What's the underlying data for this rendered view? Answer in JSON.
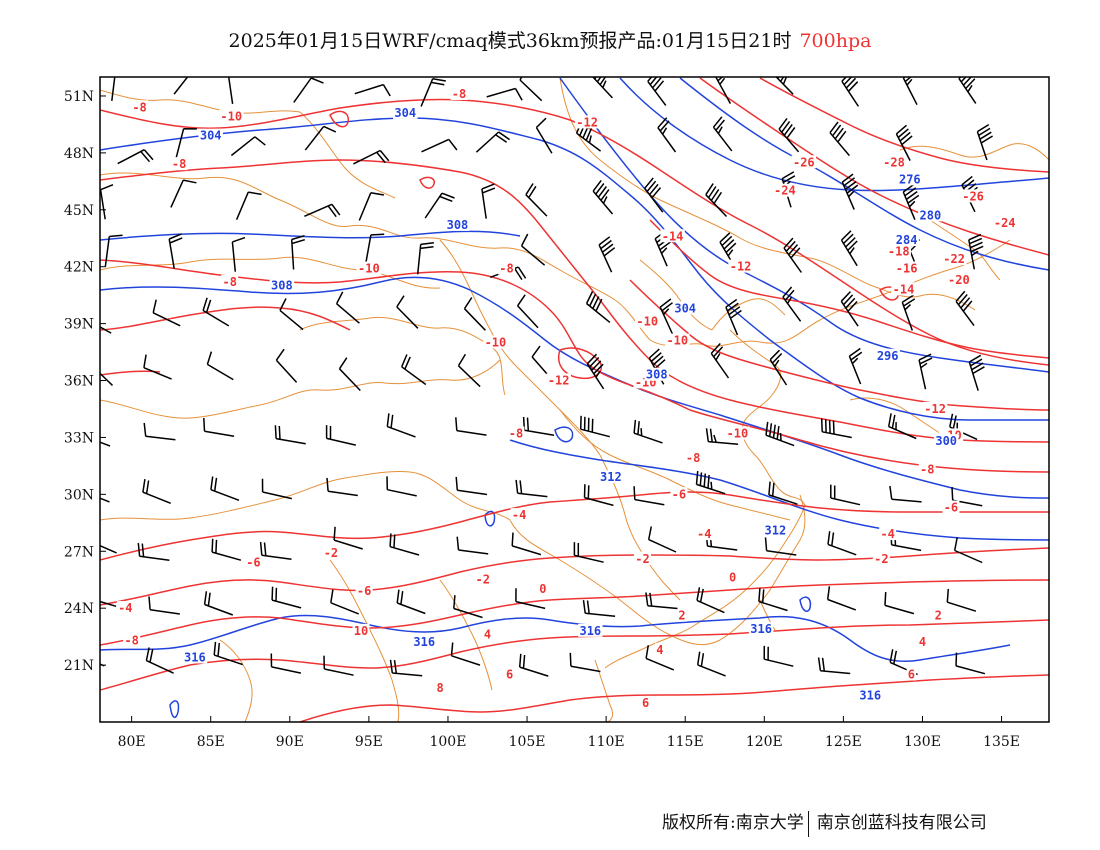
{
  "title": {
    "main": "2025年01月15日WRF/cmaq模式36km预报产品:01月15日21时",
    "level": "700hpa"
  },
  "colors": {
    "temperature": "#ee3333",
    "height": "#2244dd",
    "borders": "#e6913a",
    "wind": "#000000",
    "frame": "#000000"
  },
  "map": {
    "lon_range": [
      78,
      138
    ],
    "lat_range": [
      18,
      52
    ],
    "lon_ticks": [
      "80E",
      "85E",
      "90E",
      "95E",
      "100E",
      "105E",
      "110E",
      "115E",
      "120E",
      "125E",
      "130E",
      "135E"
    ],
    "lat_ticks": [
      "21N",
      "24N",
      "27N",
      "30N",
      "33N",
      "36N",
      "39N",
      "42N",
      "45N",
      "48N",
      "51N"
    ],
    "temperature_labels": [
      {
        "text": "-8",
        "lon": 80.5,
        "lat": 50.3
      },
      {
        "text": "-10",
        "lon": 86.3,
        "lat": 49.8
      },
      {
        "text": "-8",
        "lon": 83.0,
        "lat": 47.3
      },
      {
        "text": "-8",
        "lon": 100.7,
        "lat": 51.0
      },
      {
        "text": "-12",
        "lon": 108.8,
        "lat": 49.5
      },
      {
        "text": "-26",
        "lon": 122.5,
        "lat": 47.4
      },
      {
        "text": "-28",
        "lon": 128.2,
        "lat": 47.4
      },
      {
        "text": "-24",
        "lon": 121.3,
        "lat": 45.9
      },
      {
        "text": "-26",
        "lon": 133.2,
        "lat": 45.6
      },
      {
        "text": "-24",
        "lon": 135.2,
        "lat": 44.2
      },
      {
        "text": "-14",
        "lon": 114.2,
        "lat": 43.5
      },
      {
        "text": "-18",
        "lon": 128.5,
        "lat": 42.7
      },
      {
        "text": "-22",
        "lon": 132.0,
        "lat": 42.3
      },
      {
        "text": "-16",
        "lon": 129.0,
        "lat": 41.8
      },
      {
        "text": "-20",
        "lon": 132.3,
        "lat": 41.2
      },
      {
        "text": "-14",
        "lon": 128.8,
        "lat": 40.7
      },
      {
        "text": "-12",
        "lon": 118.5,
        "lat": 41.9
      },
      {
        "text": "-10",
        "lon": 95.0,
        "lat": 41.8
      },
      {
        "text": "-8",
        "lon": 86.2,
        "lat": 41.1
      },
      {
        "text": "-8",
        "lon": 103.7,
        "lat": 41.8
      },
      {
        "text": "-10",
        "lon": 112.6,
        "lat": 39.0
      },
      {
        "text": "-10",
        "lon": 114.5,
        "lat": 38.0
      },
      {
        "text": "-10",
        "lon": 103.0,
        "lat": 37.9
      },
      {
        "text": "-12",
        "lon": 107.0,
        "lat": 35.9
      },
      {
        "text": "-10",
        "lon": 112.5,
        "lat": 35.8
      },
      {
        "text": "-8",
        "lon": 104.3,
        "lat": 33.1
      },
      {
        "text": "-10",
        "lon": 118.3,
        "lat": 33.1
      },
      {
        "text": "-12",
        "lon": 130.8,
        "lat": 34.4
      },
      {
        "text": "-10",
        "lon": 131.8,
        "lat": 33.0
      },
      {
        "text": "-8",
        "lon": 115.5,
        "lat": 31.8
      },
      {
        "text": "-8",
        "lon": 130.3,
        "lat": 31.2
      },
      {
        "text": "-6",
        "lon": 114.6,
        "lat": 29.9
      },
      {
        "text": "-6",
        "lon": 131.8,
        "lat": 29.2
      },
      {
        "text": "-4",
        "lon": 104.5,
        "lat": 28.8
      },
      {
        "text": "-4",
        "lon": 116.2,
        "lat": 27.8
      },
      {
        "text": "-4",
        "lon": 127.8,
        "lat": 27.8
      },
      {
        "text": "-2",
        "lon": 92.6,
        "lat": 26.8
      },
      {
        "text": "-2",
        "lon": 112.3,
        "lat": 26.5
      },
      {
        "text": "-2",
        "lon": 127.4,
        "lat": 26.5
      },
      {
        "text": "0",
        "lon": 106.0,
        "lat": 24.9
      },
      {
        "text": "0",
        "lon": 118.0,
        "lat": 25.5
      },
      {
        "text": "-2",
        "lon": 102.2,
        "lat": 25.4
      },
      {
        "text": "-4",
        "lon": 79.6,
        "lat": 23.9
      },
      {
        "text": "-6",
        "lon": 87.7,
        "lat": 26.3
      },
      {
        "text": "-6",
        "lon": 94.7,
        "lat": 24.8
      },
      {
        "text": "2",
        "lon": 114.8,
        "lat": 23.5
      },
      {
        "text": "2",
        "lon": 131.0,
        "lat": 23.5
      },
      {
        "text": "-8",
        "lon": 80.0,
        "lat": 22.2
      },
      {
        "text": "10",
        "lon": 94.5,
        "lat": 22.7
      },
      {
        "text": "4",
        "lon": 102.5,
        "lat": 22.5
      },
      {
        "text": "4",
        "lon": 113.4,
        "lat": 21.7
      },
      {
        "text": "4",
        "lon": 130.0,
        "lat": 22.1
      },
      {
        "text": "8",
        "lon": 99.5,
        "lat": 19.7
      },
      {
        "text": "6",
        "lon": 103.9,
        "lat": 20.4
      },
      {
        "text": "6",
        "lon": 112.5,
        "lat": 18.9
      },
      {
        "text": "6",
        "lon": 129.3,
        "lat": 20.4
      }
    ],
    "height_labels": [
      {
        "text": "304",
        "lon": 97.3,
        "lat": 50.0
      },
      {
        "text": "304",
        "lon": 85.0,
        "lat": 48.8
      },
      {
        "text": "276",
        "lon": 129.2,
        "lat": 46.5
      },
      {
        "text": "280",
        "lon": 130.5,
        "lat": 44.6
      },
      {
        "text": "284",
        "lon": 129.0,
        "lat": 43.3
      },
      {
        "text": "308",
        "lon": 100.6,
        "lat": 44.1
      },
      {
        "text": "308",
        "lon": 89.5,
        "lat": 40.9
      },
      {
        "text": "304",
        "lon": 115.0,
        "lat": 39.7
      },
      {
        "text": "296",
        "lon": 127.8,
        "lat": 37.2
      },
      {
        "text": "308",
        "lon": 113.2,
        "lat": 36.2
      },
      {
        "text": "300",
        "lon": 131.5,
        "lat": 32.7
      },
      {
        "text": "312",
        "lon": 110.3,
        "lat": 30.8
      },
      {
        "text": "312",
        "lon": 120.7,
        "lat": 28.0
      },
      {
        "text": "316",
        "lon": 98.5,
        "lat": 22.1
      },
      {
        "text": "316",
        "lon": 109.0,
        "lat": 22.7
      },
      {
        "text": "316",
        "lon": 119.8,
        "lat": 22.8
      },
      {
        "text": "316",
        "lon": 84.0,
        "lat": 21.3
      },
      {
        "text": "316",
        "lon": 126.7,
        "lat": 19.3
      }
    ]
  },
  "footer": {
    "left": "版权所有:南京大学",
    "right": "南京创蓝科技有限公司"
  }
}
